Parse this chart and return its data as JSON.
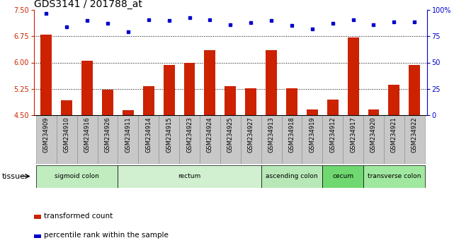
{
  "title": "GDS3141 / 201788_at",
  "samples": [
    "GSM234909",
    "GSM234910",
    "GSM234916",
    "GSM234926",
    "GSM234911",
    "GSM234914",
    "GSM234915",
    "GSM234923",
    "GSM234924",
    "GSM234925",
    "GSM234927",
    "GSM234913",
    "GSM234918",
    "GSM234919",
    "GSM234912",
    "GSM234917",
    "GSM234920",
    "GSM234921",
    "GSM234922"
  ],
  "bar_values": [
    6.8,
    4.92,
    6.05,
    5.22,
    4.63,
    5.33,
    5.92,
    5.99,
    6.35,
    5.32,
    5.27,
    6.35,
    5.26,
    4.65,
    4.95,
    6.72,
    4.65,
    5.37,
    5.92
  ],
  "dot_values": [
    97,
    84,
    90,
    87,
    79,
    91,
    90,
    93,
    91,
    86,
    88,
    90,
    85,
    82,
    87,
    91,
    86,
    89,
    89
  ],
  "ylim_left": [
    4.5,
    7.5
  ],
  "ylim_right": [
    0,
    100
  ],
  "yticks_left": [
    4.5,
    5.25,
    6.0,
    6.75,
    7.5
  ],
  "yticks_right": [
    0,
    25,
    50,
    75,
    100
  ],
  "ytick_labels_right": [
    "0",
    "25",
    "50",
    "75",
    "100%"
  ],
  "hlines": [
    5.25,
    6.0,
    6.75
  ],
  "bar_color": "#cc2200",
  "dot_color": "#0000cc",
  "tissue_groups": [
    {
      "label": "sigmoid colon",
      "start": 0,
      "end": 3,
      "color": "#c0ecc0"
    },
    {
      "label": "rectum",
      "start": 4,
      "end": 10,
      "color": "#d0f0d0"
    },
    {
      "label": "ascending colon",
      "start": 11,
      "end": 13,
      "color": "#b8e8b8"
    },
    {
      "label": "cecum",
      "start": 14,
      "end": 15,
      "color": "#70d870"
    },
    {
      "label": "transverse colon",
      "start": 16,
      "end": 18,
      "color": "#a0e8a0"
    }
  ],
  "legend_bar_label": "transformed count",
  "legend_dot_label": "percentile rank within the sample",
  "tissue_label": "tissue",
  "bar_color_light": "#cc2200",
  "dot_color_light": "#0000cc",
  "background_color": "#ffffff",
  "xticklabel_bg": "#c8c8c8",
  "xticklabel_border": "#888888",
  "title_fontsize": 10,
  "tick_fontsize": 7,
  "label_fontsize": 7.5
}
